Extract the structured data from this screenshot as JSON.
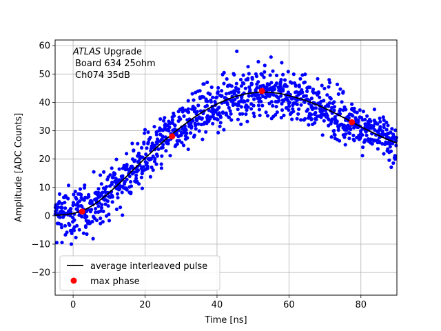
{
  "chart_data": {
    "type": "scatter",
    "title": "",
    "xlabel": "Time [ns]",
    "ylabel": "Amplitude [ADC Counts]",
    "xlim": [
      -5,
      90
    ],
    "ylim": [
      -28,
      62
    ],
    "xticks": [
      0,
      20,
      40,
      60,
      80
    ],
    "yticks": [
      -20,
      -10,
      0,
      10,
      20,
      30,
      40,
      50,
      60
    ],
    "grid": true,
    "legend_position": "lower-left",
    "annotation": {
      "line1_italic": "ATLAS",
      "line1_rest": " Upgrade",
      "line2": "Board 634 25ohm",
      "line3": "Ch074 35dB"
    },
    "series": [
      {
        "name": "average interleaved pulse",
        "style": "line",
        "color": "#000000",
        "x": [
          -5,
          -2,
          0,
          2,
          4,
          6,
          8,
          10,
          12,
          14,
          16,
          18,
          20,
          22,
          24,
          26,
          28,
          30,
          32,
          34,
          36,
          38,
          40,
          42,
          44,
          46,
          48,
          50,
          52,
          54,
          56,
          58,
          60,
          62,
          64,
          66,
          68,
          70,
          72,
          74,
          76,
          78,
          80,
          82,
          84,
          86,
          88,
          90
        ],
        "y": [
          0.2,
          0.4,
          0.8,
          1.5,
          2.6,
          4.1,
          6.0,
          8.1,
          10.4,
          12.8,
          15.3,
          17.8,
          20.3,
          22.7,
          25.0,
          27.2,
          29.3,
          31.3,
          33.2,
          35.0,
          36.6,
          38.1,
          39.4,
          40.6,
          41.6,
          42.4,
          43.0,
          43.4,
          43.6,
          43.6,
          43.4,
          43.0,
          42.4,
          41.7,
          40.9,
          40.0,
          39.0,
          37.9,
          36.7,
          35.4,
          34.1,
          32.7,
          31.4,
          30.1,
          28.9,
          27.7,
          26.6,
          25.6
        ]
      },
      {
        "name": "max phase",
        "style": "marker",
        "color": "#ff0000",
        "x": [
          2.5,
          27.5,
          52.5,
          77.5
        ],
        "y": [
          1.5,
          28,
          44,
          33
        ]
      },
      {
        "name": "",
        "style": "scatter",
        "color": "#0000ff",
        "noise_sd": 4.2,
        "x_step": 0.5,
        "points_per_x": 6,
        "outliers": {
          "x": [
            -0.5,
            45.5,
            55.0,
            58.0,
            89.5
          ],
          "y": [
            -10,
            58,
            56,
            54,
            20
          ]
        }
      }
    ]
  }
}
